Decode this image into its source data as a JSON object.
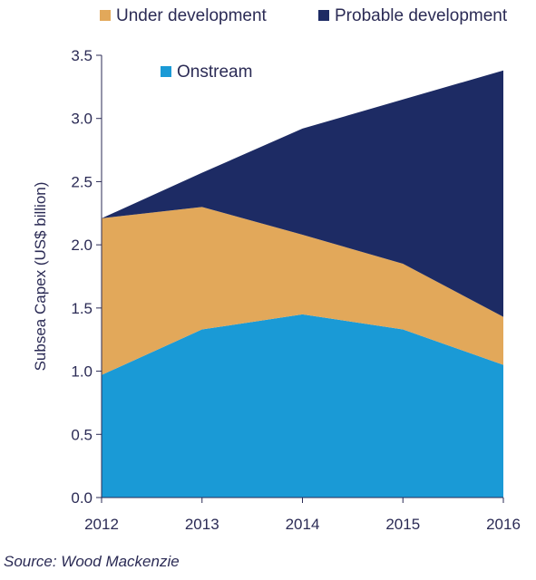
{
  "chart_data": {
    "type": "area",
    "stacked": true,
    "x": [
      "2012",
      "2013",
      "2014",
      "2015",
      "2016"
    ],
    "ylabel": "Subsea Capex (US$ billion)",
    "ylim": [
      0,
      3.5
    ],
    "yticks": [
      "0.0",
      "0.5",
      "1.0",
      "1.5",
      "2.0",
      "2.5",
      "3.0",
      "3.5"
    ],
    "legend_position": "top",
    "series": [
      {
        "name": "Onstream",
        "color": "#1a9ad6",
        "values": [
          0.97,
          1.33,
          1.45,
          1.33,
          1.05
        ]
      },
      {
        "name": "Under development",
        "color": "#e2a85a",
        "values": [
          1.24,
          0.97,
          0.63,
          0.52,
          0.38
        ]
      },
      {
        "name": "Probable development",
        "color": "#1d2b64",
        "values": [
          0.0,
          0.27,
          0.84,
          1.3,
          1.95
        ]
      }
    ],
    "grid": false
  },
  "source": "Source: Wood Mackenzie"
}
